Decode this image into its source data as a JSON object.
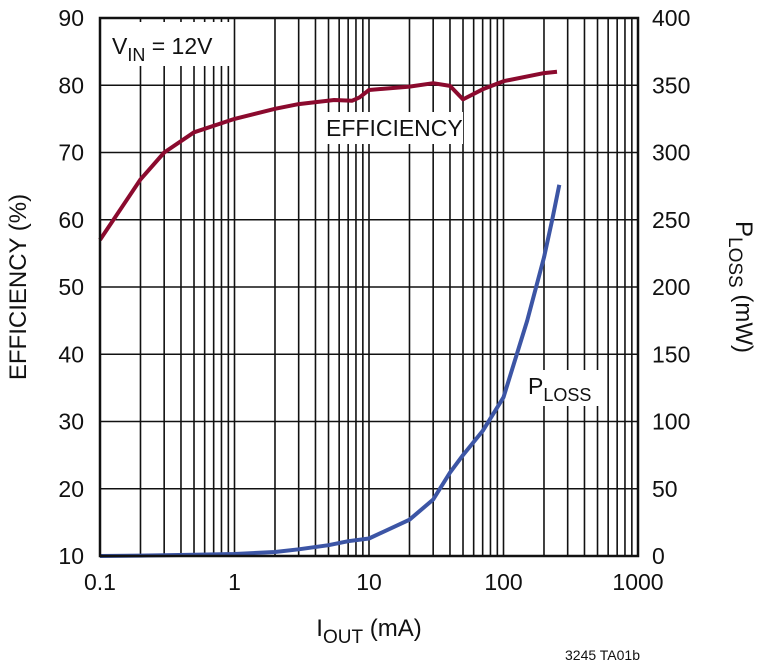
{
  "chart_data": {
    "type": "line",
    "title": "",
    "xlabel": "I_OUT (mA)",
    "xlabel_main": "I",
    "xlabel_sub": "OUT",
    "xlabel_suffix": " (mA)",
    "ylabel": "EFFICIENCY (%)",
    "y2label": "P_LOSS (mW)",
    "y2label_main": "P",
    "y2label_sub": "LOSS",
    "y2label_suffix": " (mW)",
    "xscale": "log",
    "xlim": [
      0.1,
      1000
    ],
    "ylim": [
      10,
      90
    ],
    "y2lim": [
      0,
      400
    ],
    "grid": true,
    "x_ticks": [
      "0.1",
      "1",
      "10",
      "100",
      "1000"
    ],
    "y_ticks": [
      "10",
      "20",
      "30",
      "40",
      "50",
      "60",
      "70",
      "80",
      "90"
    ],
    "y2_ticks": [
      "0",
      "50",
      "100",
      "150",
      "200",
      "250",
      "300",
      "350",
      "400"
    ],
    "annotations": {
      "condition_main": "V",
      "condition_sub": "IN",
      "condition_suffix": " = 12V",
      "efficiency_label": "EFFICIENCY",
      "ploss_main": "P",
      "ploss_sub": "LOSS",
      "figure_code": "3245 TA01b"
    },
    "series": [
      {
        "name": "EFFICIENCY",
        "axis": "left",
        "color": "#8b0a2e",
        "x": [
          0.1,
          0.2,
          0.3,
          0.5,
          1,
          2,
          3,
          5.5,
          7.5,
          8.5,
          10,
          20,
          30,
          40,
          50,
          70,
          100,
          200,
          250
        ],
        "values": [
          57,
          66,
          70,
          73,
          75,
          76.5,
          77.2,
          77.8,
          77.7,
          78.2,
          79.3,
          79.8,
          80.3,
          79.9,
          77.9,
          79.4,
          80.6,
          81.8,
          82
        ]
      },
      {
        "name": "P_LOSS",
        "axis": "right",
        "color": "#3c55a5",
        "x": [
          0.1,
          0.2,
          0.5,
          1,
          2,
          3,
          5,
          7,
          10,
          20,
          30,
          40,
          50,
          70,
          100,
          150,
          200,
          230,
          260
        ],
        "values": [
          0,
          0.3,
          1,
          1.5,
          3,
          5,
          8,
          11,
          13,
          27,
          42,
          62,
          75,
          93,
          118,
          175,
          222,
          250,
          276
        ]
      }
    ]
  }
}
